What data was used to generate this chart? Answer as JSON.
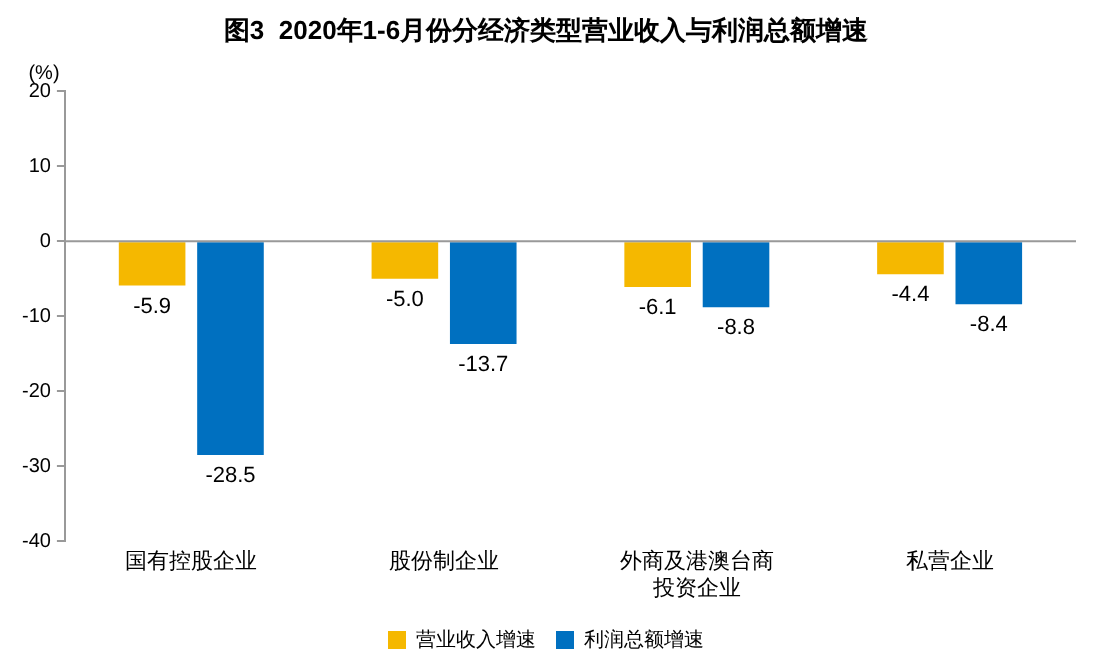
{
  "chart_data": {
    "type": "bar",
    "title": "图3  2020年1-6月份分经济类型营业收入与利润总额增速",
    "ylabel": "(%)",
    "categories": [
      "国有控股企业",
      "股份制企业",
      "外商及港澳台商投资企业",
      "私营企业"
    ],
    "series": [
      {
        "name": "营业收入增速",
        "color": "#f5b800",
        "values": [
          -5.9,
          -5.0,
          -6.1,
          -4.4
        ],
        "value_labels": [
          "-5.9",
          "-5.0",
          "-6.1",
          "-4.4"
        ]
      },
      {
        "name": "利润总额增速",
        "color": "#0070c0",
        "values": [
          -28.5,
          -13.7,
          -8.8,
          -8.4
        ],
        "value_labels": [
          "-28.5",
          "-13.7",
          "-8.8",
          "-8.4"
        ]
      }
    ],
    "ylim": [
      -40,
      20
    ],
    "yticks": [
      -40,
      -30,
      -20,
      -10,
      0,
      10,
      20
    ],
    "legend": "bottom"
  }
}
